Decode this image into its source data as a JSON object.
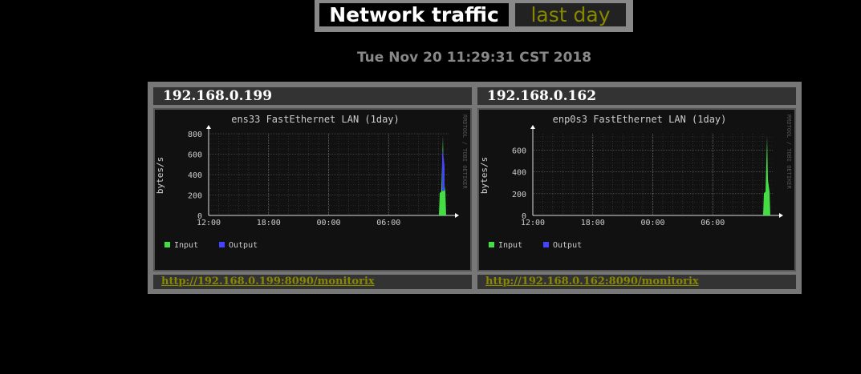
{
  "header": {
    "title": "Network traffic",
    "period": "last day"
  },
  "timestamp": "Tue Nov 20 11:29:31 CST 2018",
  "colors": {
    "input": "#44dd44",
    "output": "#4444ff",
    "link": "#888800"
  },
  "hosts": [
    {
      "address": "192.168.0.199",
      "url": "http://192.168.0.199:8090/monitorix",
      "chart_data": {
        "type": "area",
        "title": "ens33 FastEthernet LAN  (1day)",
        "ylabel": "bytes/s",
        "xticks": [
          "12:00",
          "18:00",
          "00:00",
          "06:00"
        ],
        "yticks": [
          "0",
          "200",
          "400",
          "600",
          "800"
        ],
        "ylim": [
          0,
          800
        ],
        "watermark": "RRDTOOL / TOBI OETIKER",
        "legend": [
          "Input",
          "Output"
        ],
        "series": [
          {
            "name": "Input",
            "peak": 780
          },
          {
            "name": "Output",
            "peak": 600
          }
        ]
      }
    },
    {
      "address": "192.168.0.162",
      "url": "http://192.168.0.162:8090/monitorix",
      "chart_data": {
        "type": "area",
        "title": "enp0s3 FastEthernet LAN  (1day)",
        "ylabel": "bytes/s",
        "xticks": [
          "12:00",
          "18:00",
          "00:00",
          "06:00"
        ],
        "yticks": [
          "0",
          "200",
          "400",
          "600"
        ],
        "ylim": [
          0,
          750
        ],
        "watermark": "RRDTOOL / TOBI OETIKER",
        "legend": [
          "Input",
          "Output"
        ],
        "series": [
          {
            "name": "Input",
            "peak": 730
          },
          {
            "name": "Output",
            "peak": 0
          }
        ]
      }
    }
  ]
}
